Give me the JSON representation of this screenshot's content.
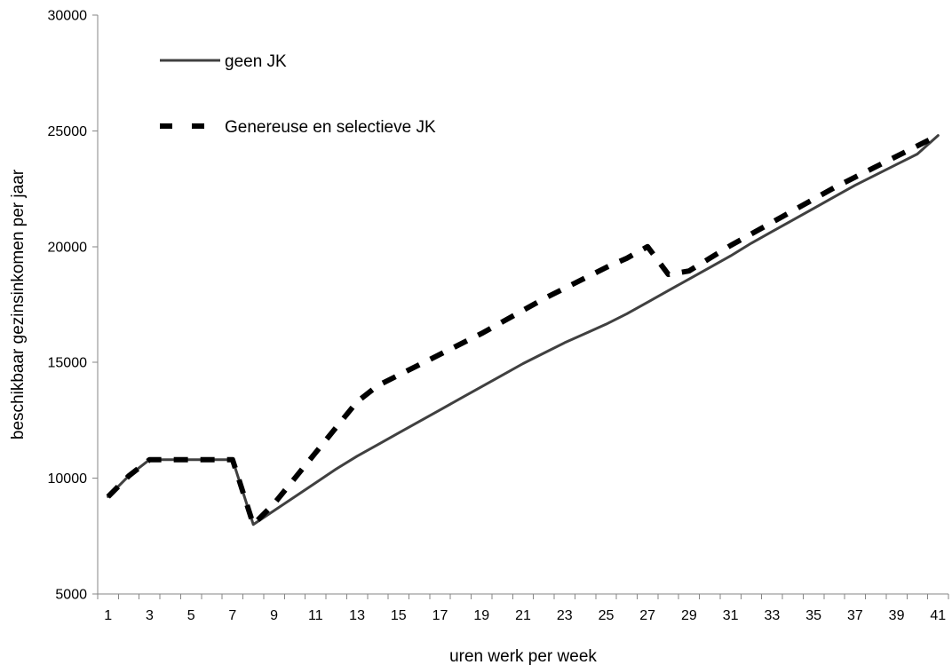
{
  "chart_data": {
    "type": "line",
    "title": "",
    "xlabel": "uren werk per week",
    "ylabel": "beschikbaar gezinsinkomen per jaar",
    "x": [
      1,
      2,
      3,
      4,
      5,
      6,
      7,
      8,
      9,
      10,
      11,
      12,
      13,
      14,
      15,
      16,
      17,
      18,
      19,
      20,
      21,
      22,
      23,
      24,
      25,
      26,
      27,
      28,
      29,
      30,
      31,
      32,
      33,
      34,
      35,
      36,
      37,
      38,
      39,
      40,
      41
    ],
    "x_tick_labels": [
      "1",
      "3",
      "5",
      "7",
      "9",
      "11",
      "13",
      "15",
      "17",
      "19",
      "21",
      "23",
      "25",
      "27",
      "29",
      "31",
      "33",
      "35",
      "37",
      "39",
      "41"
    ],
    "ylim": [
      5000,
      30000
    ],
    "y_ticks": [
      5000,
      10000,
      15000,
      20000,
      25000,
      30000
    ],
    "grid": false,
    "legend_position": "top-left",
    "series": [
      {
        "name": "geen JK",
        "style": "solid",
        "color": "#404040",
        "values": [
          9200,
          10100,
          10800,
          10800,
          10800,
          10800,
          10800,
          8000,
          8600,
          9200,
          9800,
          10400,
          10950,
          11450,
          11950,
          12450,
          12950,
          13450,
          13950,
          14450,
          14950,
          15400,
          15850,
          16250,
          16650,
          17100,
          17600,
          18100,
          18600,
          19100,
          19600,
          20150,
          20650,
          21150,
          21650,
          22150,
          22650,
          23100,
          23550,
          24000,
          24800
        ]
      },
      {
        "name": "Genereuse en selectieve JK",
        "style": "dashed",
        "color": "#000000",
        "values": [
          9200,
          10100,
          10800,
          10800,
          10800,
          10800,
          10800,
          8000,
          8900,
          10000,
          11100,
          12200,
          13300,
          14000,
          14450,
          14900,
          15350,
          15800,
          16250,
          16750,
          17250,
          17750,
          18200,
          18650,
          19100,
          19500,
          20000,
          18800,
          18950,
          19500,
          20050,
          20550,
          21050,
          21550,
          22050,
          22550,
          23000,
          23450,
          23900,
          24350,
          24800
        ]
      }
    ]
  }
}
